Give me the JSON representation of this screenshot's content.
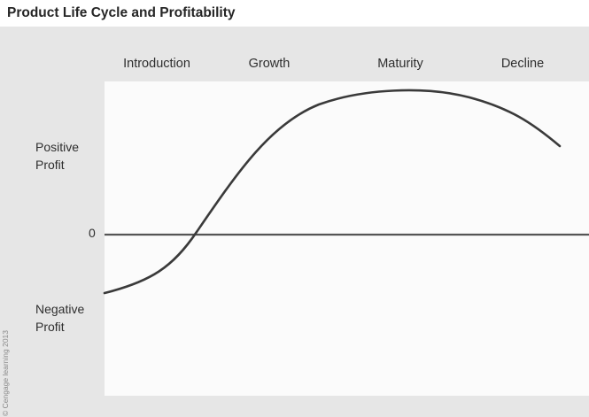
{
  "title": "Product Life Cycle and Profitability",
  "stages": [
    "Introduction",
    "Growth",
    "Maturity",
    "Decline"
  ],
  "y_labels": {
    "positive": [
      "Positive",
      "Profit"
    ],
    "zero": "0",
    "negative": [
      "Negative",
      "Profit"
    ]
  },
  "credit": "© Cengage learning 2013",
  "colors": {
    "curve": "#3a3a3a",
    "axis": "#555555",
    "panel": "#e6e6e6",
    "plot": "#fbfbfb"
  }
}
